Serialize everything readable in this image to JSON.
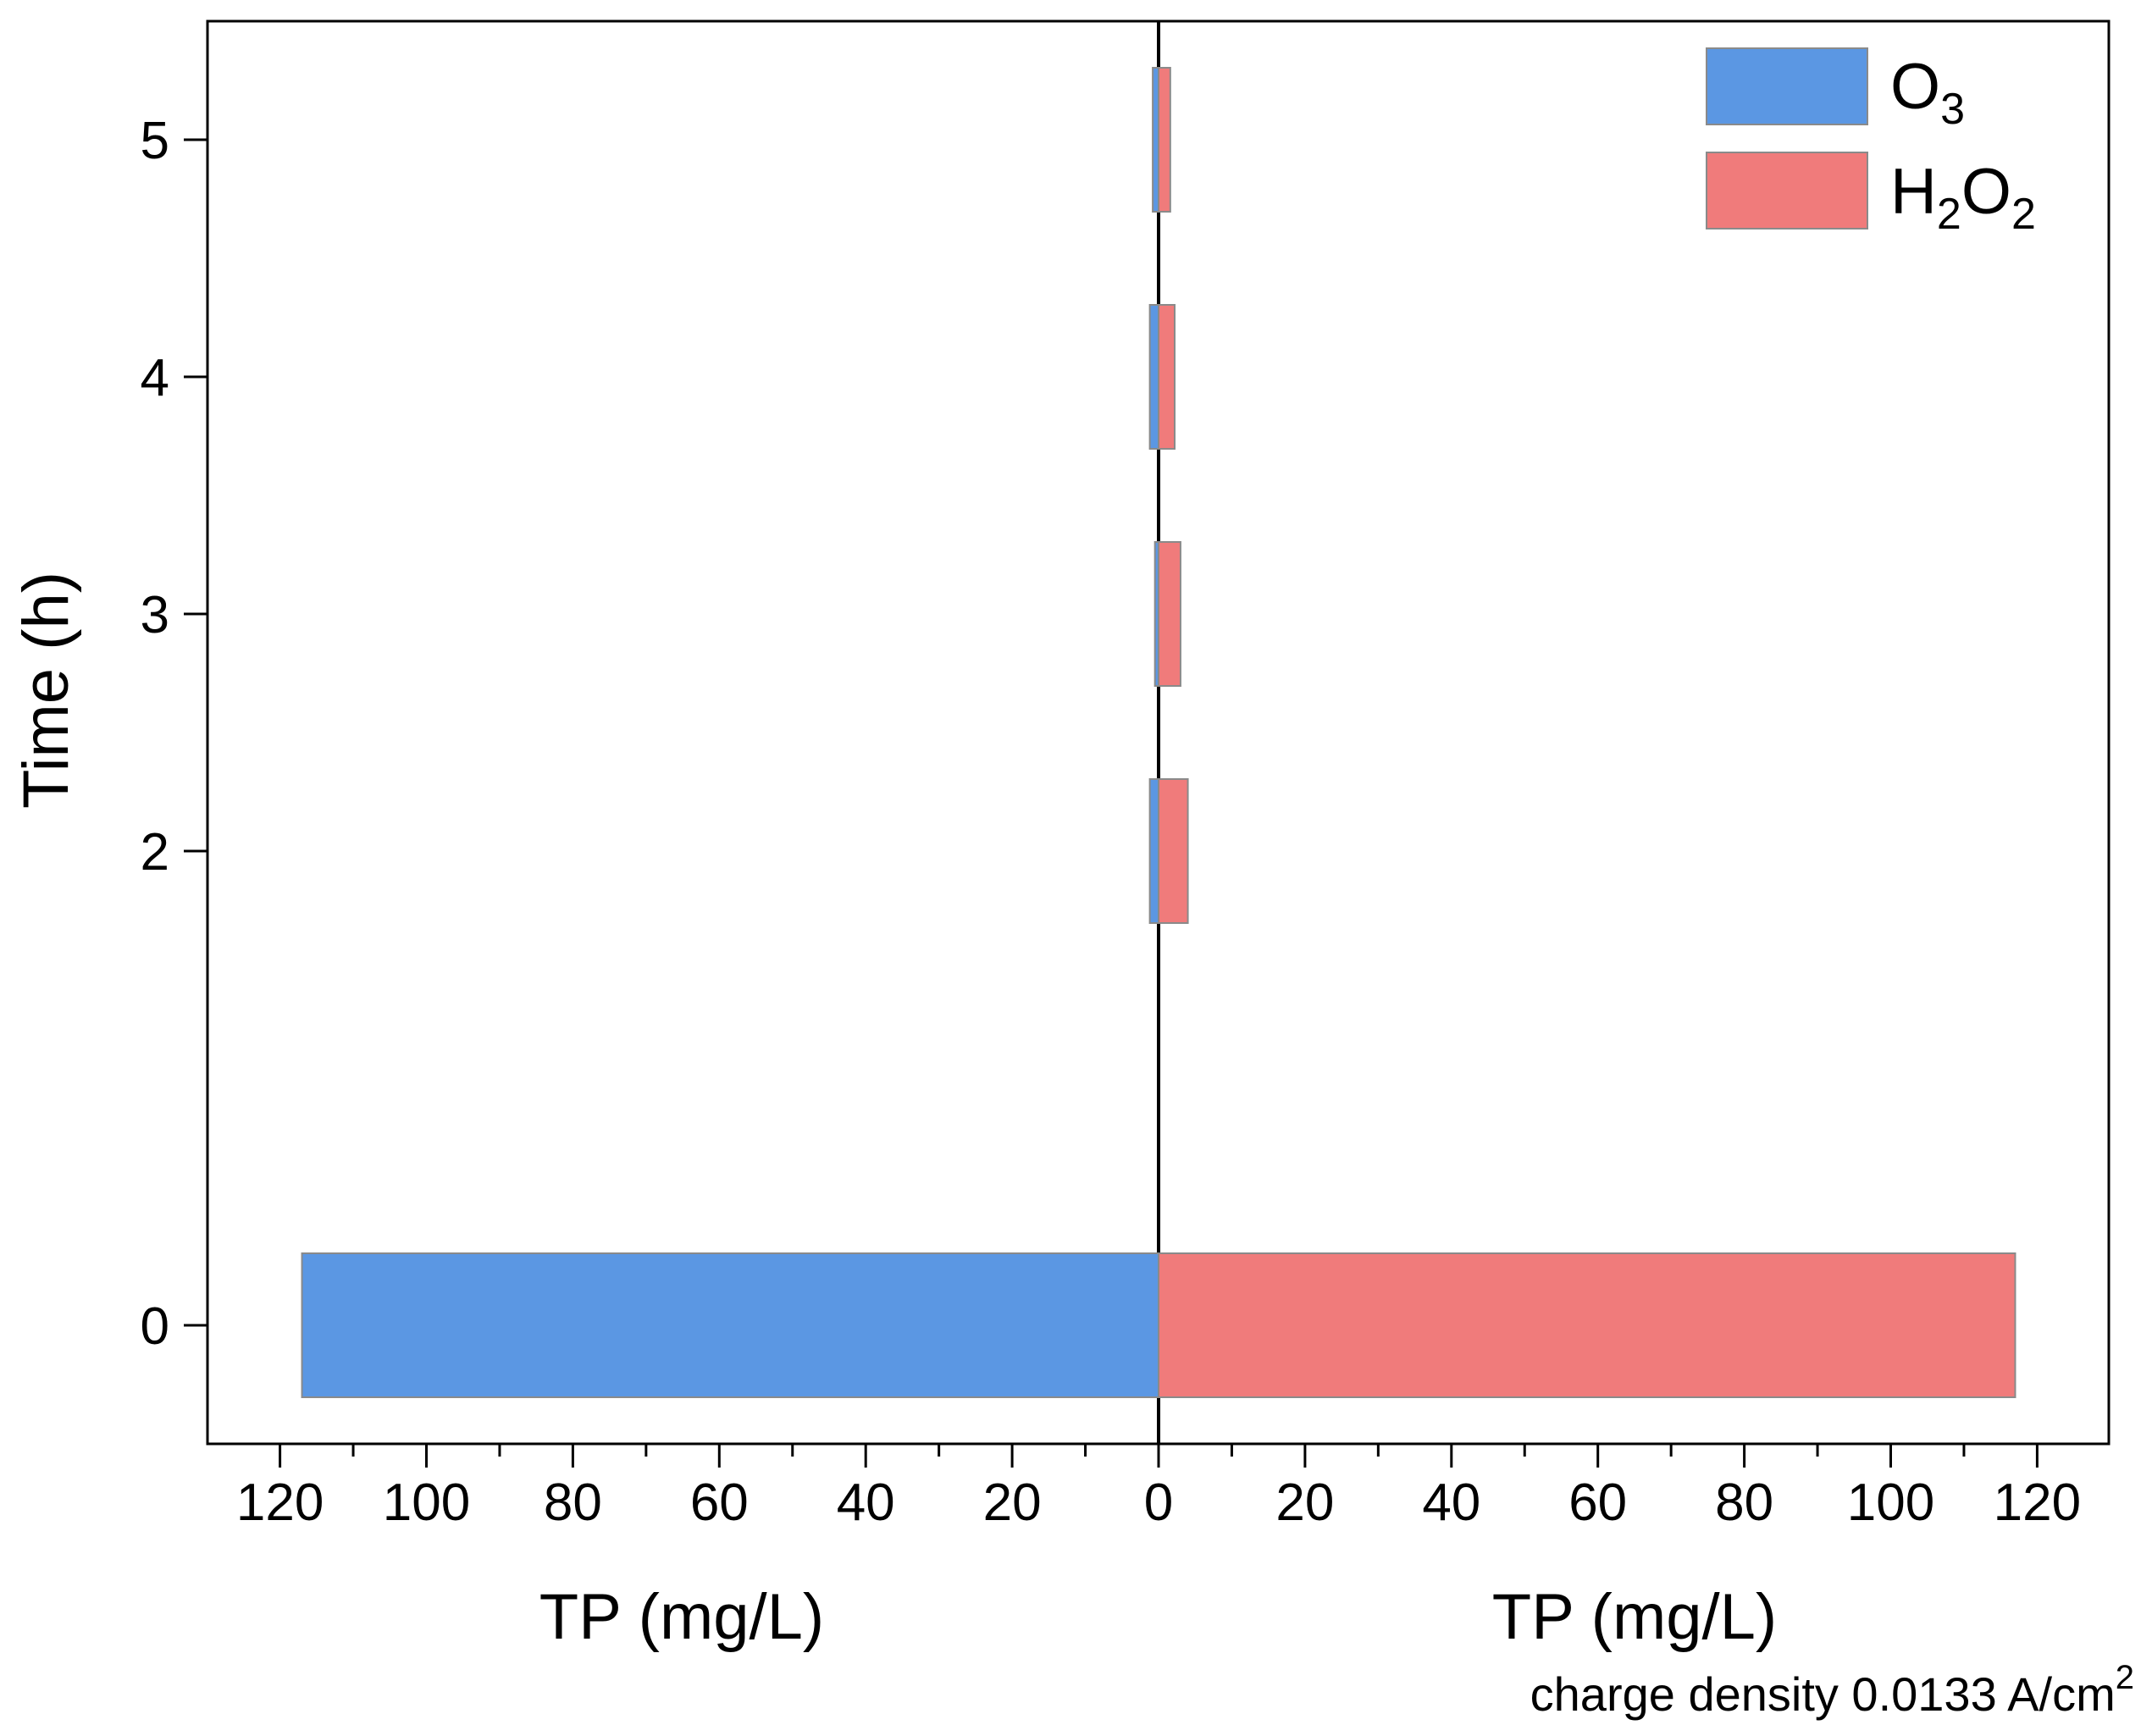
{
  "chart_data": {
    "type": "bar",
    "orientation": "horizontal",
    "layout": "mirrored-butterfly",
    "y_categories": [
      0,
      2,
      3,
      4,
      5
    ],
    "y_ticks": [
      "0",
      "2",
      "3",
      "4",
      "5"
    ],
    "ylim": [
      -0.5,
      5.5
    ],
    "ylabel": "Time (h)",
    "xlim_left": [
      130,
      0
    ],
    "xlim_right": [
      0,
      130
    ],
    "x_ticks_left": [
      "120",
      "100",
      "80",
      "60",
      "40",
      "20",
      "0"
    ],
    "x_ticks_right": [
      "20",
      "40",
      "60",
      "80",
      "100",
      "120"
    ],
    "xlabel_left": "TP (mg/L)",
    "xlabel_right": "TP (mg/L)",
    "series": [
      {
        "name_main": "O",
        "name_sub": "3",
        "side": "left",
        "color": "#5b97e3",
        "values": [
          117,
          1.2,
          0.5,
          1.2,
          0.8
        ]
      },
      {
        "name_main": "H",
        "name_sub": "2",
        "name_main2": "O",
        "name_sub2": "2",
        "side": "right",
        "color": "#f07b7b",
        "values": [
          117,
          4.0,
          3.0,
          2.2,
          1.6
        ]
      }
    ],
    "annotation": {
      "text": "charge density 0.0133 A/cm",
      "sup": "2"
    }
  }
}
